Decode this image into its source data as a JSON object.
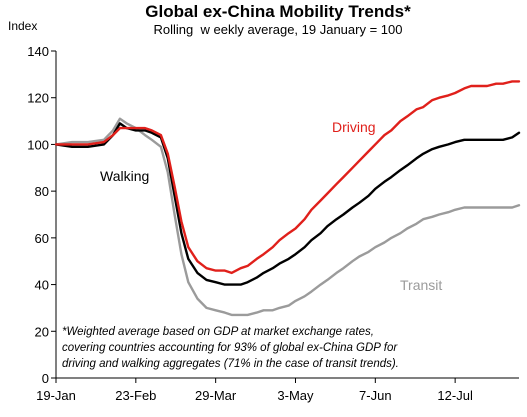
{
  "chart_data": {
    "type": "line",
    "title": "Global ex-China Mobility Trends*",
    "subtitle": "Rolling  w eekly average, 19 January = 100",
    "ylabel": "Index",
    "ylim": [
      0,
      140
    ],
    "yticks": [
      0,
      20,
      40,
      60,
      80,
      100,
      120,
      140
    ],
    "xlim": [
      "2020-01-19",
      "2020-08-09"
    ],
    "xticks": [
      {
        "label": "19-Jan",
        "date": "2020-01-19"
      },
      {
        "label": "23-Feb",
        "date": "2020-02-23"
      },
      {
        "label": "29-Mar",
        "date": "2020-03-29"
      },
      {
        "label": "3-May",
        "date": "2020-05-03"
      },
      {
        "label": "7-Jun",
        "date": "2020-06-07"
      },
      {
        "label": "12-Jul",
        "date": "2020-07-12"
      }
    ],
    "grid": false,
    "note": [
      "*Weighted average based on GDP at market exchange rates,",
      "covering countries accounting for 93% of global ex-China GDP for",
      "driving and walking aggregates (71% in the case of transit trends)."
    ],
    "series": [
      {
        "name": "Driving",
        "color": "#e0201b",
        "points": [
          [
            "2020-01-19",
            100
          ],
          [
            "2020-01-26",
            100
          ],
          [
            "2020-02-02",
            100
          ],
          [
            "2020-02-09",
            101
          ],
          [
            "2020-02-13",
            104
          ],
          [
            "2020-02-16",
            107
          ],
          [
            "2020-02-19",
            107
          ],
          [
            "2020-02-23",
            107
          ],
          [
            "2020-02-27",
            107
          ],
          [
            "2020-03-01",
            106
          ],
          [
            "2020-03-05",
            104
          ],
          [
            "2020-03-08",
            96
          ],
          [
            "2020-03-11",
            82
          ],
          [
            "2020-03-14",
            67
          ],
          [
            "2020-03-17",
            56
          ],
          [
            "2020-03-21",
            50
          ],
          [
            "2020-03-25",
            47
          ],
          [
            "2020-03-29",
            46
          ],
          [
            "2020-04-02",
            46
          ],
          [
            "2020-04-05",
            45
          ],
          [
            "2020-04-09",
            47
          ],
          [
            "2020-04-12",
            48
          ],
          [
            "2020-04-16",
            51
          ],
          [
            "2020-04-19",
            53
          ],
          [
            "2020-04-23",
            56
          ],
          [
            "2020-04-26",
            59
          ],
          [
            "2020-04-30",
            62
          ],
          [
            "2020-05-03",
            64
          ],
          [
            "2020-05-07",
            68
          ],
          [
            "2020-05-10",
            72
          ],
          [
            "2020-05-14",
            76
          ],
          [
            "2020-05-17",
            79
          ],
          [
            "2020-05-21",
            83
          ],
          [
            "2020-05-24",
            86
          ],
          [
            "2020-05-28",
            90
          ],
          [
            "2020-05-31",
            93
          ],
          [
            "2020-06-04",
            97
          ],
          [
            "2020-06-07",
            100
          ],
          [
            "2020-06-11",
            104
          ],
          [
            "2020-06-14",
            106
          ],
          [
            "2020-06-18",
            110
          ],
          [
            "2020-06-21",
            112
          ],
          [
            "2020-06-25",
            115
          ],
          [
            "2020-06-28",
            116
          ],
          [
            "2020-07-02",
            119
          ],
          [
            "2020-07-05",
            120
          ],
          [
            "2020-07-09",
            121
          ],
          [
            "2020-07-12",
            122
          ],
          [
            "2020-07-16",
            124
          ],
          [
            "2020-07-19",
            125
          ],
          [
            "2020-07-23",
            125
          ],
          [
            "2020-07-26",
            125
          ],
          [
            "2020-07-30",
            126
          ],
          [
            "2020-08-02",
            126
          ],
          [
            "2020-08-06",
            127
          ],
          [
            "2020-08-09",
            127
          ]
        ]
      },
      {
        "name": "Walking",
        "color": "#000000",
        "points": [
          [
            "2020-01-19",
            100
          ],
          [
            "2020-01-26",
            99
          ],
          [
            "2020-02-02",
            99
          ],
          [
            "2020-02-09",
            100
          ],
          [
            "2020-02-13",
            104
          ],
          [
            "2020-02-16",
            109
          ],
          [
            "2020-02-19",
            107
          ],
          [
            "2020-02-23",
            106
          ],
          [
            "2020-02-27",
            106
          ],
          [
            "2020-03-01",
            105
          ],
          [
            "2020-03-05",
            103
          ],
          [
            "2020-03-08",
            94
          ],
          [
            "2020-03-11",
            78
          ],
          [
            "2020-03-14",
            62
          ],
          [
            "2020-03-17",
            51
          ],
          [
            "2020-03-21",
            45
          ],
          [
            "2020-03-25",
            42
          ],
          [
            "2020-03-29",
            41
          ],
          [
            "2020-04-02",
            40
          ],
          [
            "2020-04-05",
            40
          ],
          [
            "2020-04-09",
            40
          ],
          [
            "2020-04-12",
            41
          ],
          [
            "2020-04-16",
            43
          ],
          [
            "2020-04-19",
            45
          ],
          [
            "2020-04-23",
            47
          ],
          [
            "2020-04-26",
            49
          ],
          [
            "2020-04-30",
            51
          ],
          [
            "2020-05-03",
            53
          ],
          [
            "2020-05-07",
            56
          ],
          [
            "2020-05-10",
            59
          ],
          [
            "2020-05-14",
            62
          ],
          [
            "2020-05-17",
            65
          ],
          [
            "2020-05-21",
            68
          ],
          [
            "2020-05-24",
            70
          ],
          [
            "2020-05-28",
            73
          ],
          [
            "2020-05-31",
            75
          ],
          [
            "2020-06-04",
            78
          ],
          [
            "2020-06-07",
            81
          ],
          [
            "2020-06-11",
            84
          ],
          [
            "2020-06-14",
            86
          ],
          [
            "2020-06-18",
            89
          ],
          [
            "2020-06-21",
            91
          ],
          [
            "2020-06-25",
            94
          ],
          [
            "2020-06-28",
            96
          ],
          [
            "2020-07-02",
            98
          ],
          [
            "2020-07-05",
            99
          ],
          [
            "2020-07-09",
            100
          ],
          [
            "2020-07-12",
            101
          ],
          [
            "2020-07-16",
            102
          ],
          [
            "2020-07-19",
            102
          ],
          [
            "2020-07-23",
            102
          ],
          [
            "2020-07-26",
            102
          ],
          [
            "2020-07-30",
            102
          ],
          [
            "2020-08-02",
            102
          ],
          [
            "2020-08-06",
            103
          ],
          [
            "2020-08-09",
            105
          ]
        ]
      },
      {
        "name": "Transit",
        "color": "#9b9b9b",
        "points": [
          [
            "2020-01-19",
            100
          ],
          [
            "2020-01-26",
            101
          ],
          [
            "2020-02-02",
            101
          ],
          [
            "2020-02-09",
            102
          ],
          [
            "2020-02-13",
            106
          ],
          [
            "2020-02-16",
            111
          ],
          [
            "2020-02-19",
            109
          ],
          [
            "2020-02-23",
            107
          ],
          [
            "2020-02-27",
            104
          ],
          [
            "2020-03-01",
            102
          ],
          [
            "2020-03-05",
            99
          ],
          [
            "2020-03-08",
            88
          ],
          [
            "2020-03-11",
            70
          ],
          [
            "2020-03-14",
            53
          ],
          [
            "2020-03-17",
            41
          ],
          [
            "2020-03-21",
            34
          ],
          [
            "2020-03-25",
            30
          ],
          [
            "2020-03-29",
            29
          ],
          [
            "2020-04-02",
            28
          ],
          [
            "2020-04-05",
            27
          ],
          [
            "2020-04-09",
            27
          ],
          [
            "2020-04-12",
            27
          ],
          [
            "2020-04-16",
            28
          ],
          [
            "2020-04-19",
            29
          ],
          [
            "2020-04-23",
            29
          ],
          [
            "2020-04-26",
            30
          ],
          [
            "2020-04-30",
            31
          ],
          [
            "2020-05-03",
            33
          ],
          [
            "2020-05-07",
            35
          ],
          [
            "2020-05-10",
            37
          ],
          [
            "2020-05-14",
            40
          ],
          [
            "2020-05-17",
            42
          ],
          [
            "2020-05-21",
            45
          ],
          [
            "2020-05-24",
            47
          ],
          [
            "2020-05-28",
            50
          ],
          [
            "2020-05-31",
            52
          ],
          [
            "2020-06-04",
            54
          ],
          [
            "2020-06-07",
            56
          ],
          [
            "2020-06-11",
            58
          ],
          [
            "2020-06-14",
            60
          ],
          [
            "2020-06-18",
            62
          ],
          [
            "2020-06-21",
            64
          ],
          [
            "2020-06-25",
            66
          ],
          [
            "2020-06-28",
            68
          ],
          [
            "2020-07-02",
            69
          ],
          [
            "2020-07-05",
            70
          ],
          [
            "2020-07-09",
            71
          ],
          [
            "2020-07-12",
            72
          ],
          [
            "2020-07-16",
            73
          ],
          [
            "2020-07-19",
            73
          ],
          [
            "2020-07-23",
            73
          ],
          [
            "2020-07-26",
            73
          ],
          [
            "2020-07-30",
            73
          ],
          [
            "2020-08-02",
            73
          ],
          [
            "2020-08-06",
            73
          ],
          [
            "2020-08-09",
            74
          ]
        ]
      }
    ]
  }
}
